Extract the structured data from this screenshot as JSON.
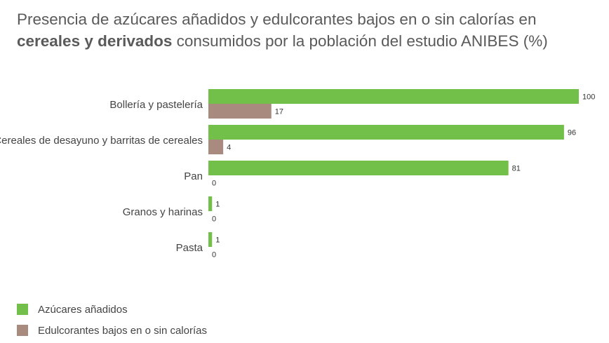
{
  "title": {
    "part1": "Presencia de azúcares añadidos y edulcorantes bajos en o sin calorías en ",
    "bold": "cereales y derivados",
    "part2": " consumidos por la población del estudio ANIBES (%)"
  },
  "colors": {
    "sugar": "#72c04a",
    "sweetener": "#a88b7e"
  },
  "chart_data": {
    "type": "bar",
    "orientation": "horizontal",
    "categories": [
      "Bollería y pastelería",
      "Cereales de desayuno y barritas de cereales",
      "Pan",
      "Granos y harinas",
      "Pasta"
    ],
    "series": [
      {
        "name": "Azúcares añadidos",
        "values": [
          100,
          96,
          81,
          1,
          1
        ]
      },
      {
        "name": "Edulcorantes bajos en o sin calorías",
        "values": [
          17,
          4,
          0,
          0,
          0
        ]
      }
    ],
    "xlim": [
      0,
      100
    ],
    "grid": false,
    "legend": "bottom-left"
  }
}
